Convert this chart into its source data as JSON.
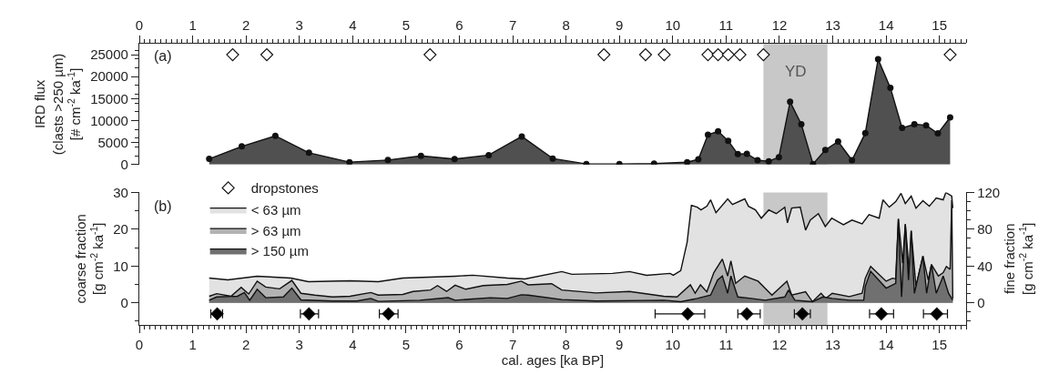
{
  "chart_data": [
    {
      "type": "area",
      "ylabel": "IRD flux\n(clasts >250 µm)\n[# cm$^{-2}$ ka$^{-1}$]",
      "xlim": [
        0,
        15.5
      ],
      "xticks": [
        0,
        1,
        2,
        3,
        4,
        5,
        6,
        7,
        8,
        9,
        10,
        11,
        12,
        13,
        14,
        15
      ],
      "ylim": [
        0,
        27500
      ],
      "yticks": [
        0,
        5000,
        10000,
        15000,
        20000,
        25000
      ],
      "grid": false,
      "legend": "bottom left",
      "marker": "circle",
      "annotations": [
        "(a)"
      ],
      "bands": [
        {
          "axis": "x",
          "from": 11.7,
          "to": 12.9,
          "label": "YD",
          "color": "#c8c8c8"
        }
      ],
      "series": [
        {
          "color": "#505050",
          "x": [
            1.31,
            1.92,
            2.55,
            3.18,
            3.94,
            4.66,
            5.28,
            5.91,
            6.55,
            7.17,
            7.75,
            8.38,
            9.0,
            9.65,
            10.27,
            10.48,
            10.66,
            10.85,
            11.04,
            11.22,
            11.39,
            11.59,
            11.8,
            11.99,
            12.2,
            12.41,
            12.63,
            12.86,
            13.1,
            13.36,
            13.61,
            13.85,
            14.08,
            14.3,
            14.53,
            14.75,
            14.97,
            15.2
          ],
          "values": [
            1300,
            4150,
            6550,
            2700,
            560,
            1040,
            2000,
            1280,
            2160,
            6400,
            1390,
            150,
            150,
            230,
            540,
            1230,
            6800,
            7560,
            5400,
            2390,
            2470,
            1000,
            770,
            1700,
            14280,
            9180,
            150,
            3320,
            5250,
            1000,
            7180,
            24000,
            17440,
            8330,
            9180,
            8950,
            7100,
            10730
          ]
        },
        {
          "type": "scatter",
          "name": "dropstones",
          "marker": "diamond",
          "color": "#ffffff",
          "x": [
            1.75,
            2.39,
            5.45,
            8.71,
            9.49,
            9.84,
            10.66,
            10.85,
            11.04,
            11.26,
            11.7,
            15.2
          ],
          "values": [
            25000,
            25000,
            25000,
            25000,
            25000,
            25000,
            25000,
            25000,
            25000,
            25000,
            25000,
            25000
          ]
        }
      ]
    },
    {
      "type": "area",
      "xlabel": "cal. ages [ka BP]",
      "ylabel": "coarse fraction\n[g cm$^{-2}$ ka$^{-1}$]",
      "y2label": "fine fraction\n[g cm$^{-2}$ ka$^{-1}$]",
      "xlim": [
        0,
        15.5
      ],
      "xticks": [
        0,
        1,
        2,
        3,
        4,
        5,
        6,
        7,
        8,
        9,
        10,
        11,
        12,
        13,
        14,
        15
      ],
      "ylim": [
        -6,
        30
      ],
      "yticks": [
        0,
        10,
        20,
        30
      ],
      "y2lim": [
        -24,
        120
      ],
      "y2ticks": [
        0,
        40,
        80,
        120
      ],
      "grid": false,
      "legend": "top left",
      "annotations": [
        "(b)"
      ],
      "bands": [
        {
          "axis": "x",
          "from": 11.7,
          "to": 12.9,
          "color": "#c8c8c8"
        }
      ],
      "series": [
        {
          "name": "< 63 µm",
          "axis": "y2",
          "color": "#e2e2e2",
          "x": [
            1.31,
            1.66,
            2.21,
            2.84,
            3.17,
            3.95,
            4.48,
            4.94,
            5.92,
            6.25,
            6.9,
            7.23,
            7.92,
            8.11,
            8.87,
            9.19,
            9.51,
            9.95,
            10.01,
            10.15,
            10.27,
            10.35,
            10.46,
            10.53,
            10.64,
            10.71,
            10.81,
            11.03,
            11.12,
            11.35,
            11.42,
            11.55,
            11.66,
            11.8,
            11.94,
            12.1,
            12.15,
            12.23,
            12.39,
            12.49,
            12.58,
            12.73,
            12.86,
            12.98,
            13.2,
            13.36,
            13.55,
            13.68,
            13.87,
            13.94,
            14.06,
            14.18,
            14.28,
            14.36,
            14.47,
            14.56,
            14.69,
            14.81,
            14.94,
            15.07,
            15.12,
            15.23,
            15.25
          ],
          "values": [
            27,
            25,
            29,
            27,
            23,
            24,
            23,
            27,
            29,
            30,
            27,
            26,
            34,
            31,
            32,
            34,
            30,
            32,
            30,
            35,
            66,
            106,
            104,
            101,
            105,
            112,
            98,
            113,
            107,
            113,
            105,
            101,
            92,
            101,
            97,
            104,
            87,
            103,
            104,
            79,
            90,
            97,
            83,
            92,
            85,
            90,
            86,
            96,
            92,
            112,
            104,
            110,
            119,
            108,
            116,
            103,
            111,
            105,
            114,
            112,
            120,
            116,
            103
          ]
        },
        {
          "name": "> 63 µm",
          "color": "#b2b2b2",
          "x": [
            1.31,
            1.45,
            1.72,
            1.91,
            2.05,
            2.21,
            2.37,
            2.63,
            2.86,
            3.03,
            3.29,
            3.62,
            3.95,
            4.34,
            4.48,
            4.94,
            5.13,
            5.46,
            5.59,
            5.76,
            5.92,
            6.12,
            6.45,
            6.9,
            7.16,
            7.29,
            7.73,
            7.92,
            8.56,
            9.19,
            9.83,
            10.08,
            10.33,
            10.42,
            10.52,
            10.64,
            10.77,
            10.93,
            11.03,
            11.09,
            11.18,
            11.35,
            11.6,
            11.86,
            12.14,
            12.23,
            12.49,
            12.62,
            12.78,
            12.87,
            12.99,
            13.31,
            13.55,
            13.61,
            13.71,
            14.0,
            14.12,
            14.18,
            14.23,
            14.31,
            14.36,
            14.44,
            14.47,
            14.56,
            14.69,
            14.79,
            14.85,
            14.98,
            15.07,
            15.13,
            15.2,
            15.23,
            15.25
          ],
          "values": [
            1.8,
            2.5,
            1.8,
            4.2,
            2.4,
            5.9,
            4.3,
            3.8,
            6.1,
            2.6,
            2.1,
            1.6,
            1.8,
            2.8,
            2.1,
            2.3,
            3.1,
            3.5,
            4.7,
            3.1,
            4.8,
            3.7,
            4.7,
            5.0,
            5.9,
            4.9,
            5.2,
            3.5,
            2.7,
            3.1,
            1.8,
            1.6,
            4.9,
            2.6,
            4.9,
            3.0,
            8.2,
            11.9,
            7.3,
            11.4,
            5.3,
            7.3,
            5.9,
            2.1,
            5.9,
            2.1,
            3.0,
            0.3,
            2.6,
            1.2,
            2.6,
            1.7,
            2.6,
            6.7,
            9.9,
            5.9,
            6.7,
            6.5,
            22.8,
            10.8,
            21.4,
            7.2,
            19.6,
            4.5,
            12.7,
            6.2,
            10.4,
            7.3,
            8.2,
            9.9,
            9.1,
            27.9,
            1.2
          ]
        },
        {
          "name": "> 150 µm",
          "color": "#707070",
          "x": [
            1.31,
            1.45,
            1.84,
            1.97,
            2.07,
            2.21,
            2.37,
            2.7,
            2.86,
            3.03,
            3.62,
            4.08,
            4.34,
            4.48,
            5.26,
            5.79,
            5.92,
            6.58,
            6.9,
            7.16,
            7.29,
            7.92,
            8.56,
            9.83,
            10.15,
            10.46,
            10.71,
            10.84,
            10.93,
            11.03,
            11.09,
            11.22,
            11.47,
            11.73,
            12.1,
            12.17,
            12.29,
            12.62,
            12.81,
            12.99,
            13.31,
            13.58,
            13.61,
            13.71,
            14.0,
            14.18,
            14.23,
            14.29,
            14.36,
            14.42,
            14.47,
            14.53,
            14.69,
            14.76,
            14.85,
            14.94,
            15.07,
            15.17,
            15.25
          ],
          "values": [
            0.7,
            1.6,
            1.8,
            2.8,
            0.7,
            3.7,
            1.4,
            1.6,
            4.0,
            0.8,
            0.5,
            0.5,
            1.2,
            0.4,
            0.7,
            1.4,
            0.7,
            1.4,
            1.2,
            2.2,
            2.1,
            0.9,
            0.5,
            0.7,
            0.3,
            1.2,
            2.1,
            6.2,
            7.3,
            2.6,
            7.3,
            1.6,
            1.2,
            0.7,
            1.6,
            3.5,
            0.7,
            0.3,
            1.6,
            1.2,
            0.7,
            0.7,
            4.5,
            8.6,
            4.0,
            5.3,
            22.8,
            1.6,
            21.4,
            6.2,
            19.6,
            2.6,
            12.7,
            2.6,
            10.4,
            2.6,
            7.3,
            2.6,
            0.7
          ]
        },
        {
          "type": "scatter",
          "marker": "diamond",
          "color": "#000000",
          "x": [
            1.46,
            3.18,
            4.67,
            10.28,
            11.39,
            12.43,
            13.91,
            14.95
          ],
          "values": [
            -3,
            -3,
            -3,
            -3,
            -3,
            -3,
            -3,
            -3
          ],
          "xerrors": [
            [
              1.34,
              1.56
            ],
            [
              3.02,
              3.36
            ],
            [
              4.5,
              4.85
            ],
            [
              9.67,
              10.6
            ],
            [
              11.22,
              11.64
            ],
            [
              12.28,
              12.58
            ],
            [
              13.69,
              14.14
            ],
            [
              14.7,
              15.15
            ]
          ]
        }
      ]
    }
  ]
}
